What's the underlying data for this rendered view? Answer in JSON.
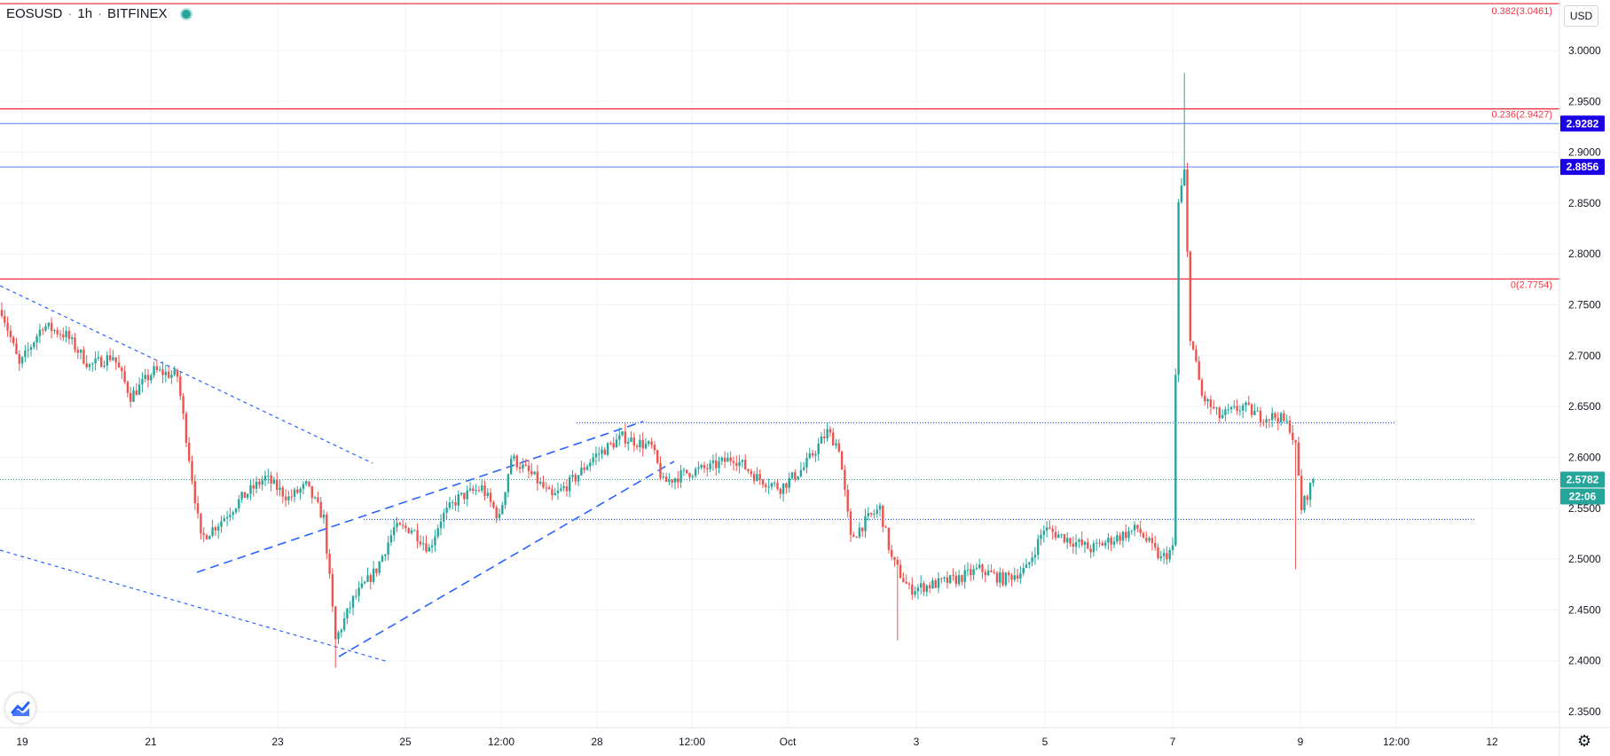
{
  "header": {
    "symbol": "EOSUSD",
    "interval": "1h",
    "exchange": "BITFINEX"
  },
  "currency_button": "USD",
  "icons": {
    "status": "live-dot-icon",
    "logo": "tradingview-logo-icon",
    "settings": "gear-icon"
  },
  "colors": {
    "up": "#26a69a",
    "down": "#ef5350",
    "fib_line": "#f23645",
    "horizontal_line": "#2962ff",
    "trend_line": "#2962ff",
    "price_badge_blue": "#1c00e6",
    "price_badge_green": "#26a69a"
  },
  "chart_data": {
    "type": "candlestick",
    "symbol": "EOSUSD",
    "interval": "1h",
    "exchange": "BITFINEX",
    "y_range": [
      2.33,
      3.06
    ],
    "x_ticks": [
      "19",
      "21",
      "23",
      "25",
      "12:00",
      "28",
      "12:00",
      "Oct",
      "3",
      "5",
      "7",
      "9",
      "12:00",
      "12"
    ],
    "y_ticks": [
      "3.0000",
      "2.9500",
      "2.9000",
      "2.8500",
      "2.8000",
      "2.7500",
      "2.7000",
      "2.6500",
      "2.6000",
      "2.5500",
      "2.5000",
      "2.4500",
      "2.4000",
      "2.3500"
    ],
    "fib_levels": [
      {
        "label": "0.382(3.0461)",
        "value": 3.0461
      },
      {
        "label": "0.236(2.9427)",
        "value": 2.9427
      },
      {
        "label": "0(2.7754)",
        "value": 2.7754
      }
    ],
    "horizontal_levels": [
      {
        "label": "2.9282",
        "value": 2.9282
      },
      {
        "label": "2.8856",
        "value": 2.8856
      }
    ],
    "last_price": {
      "label": "2.5782",
      "value": 2.5782,
      "countdown": "22:06"
    },
    "support_resistance_dotted": [
      2.634,
      2.539
    ],
    "price_path": [
      {
        "t": 0,
        "p": 2.745
      },
      {
        "t": 6,
        "p": 2.69
      },
      {
        "t": 14,
        "p": 2.73
      },
      {
        "t": 22,
        "p": 2.72
      },
      {
        "t": 30,
        "p": 2.69
      },
      {
        "t": 38,
        "p": 2.7
      },
      {
        "t": 44,
        "p": 2.66
      },
      {
        "t": 52,
        "p": 2.685
      },
      {
        "t": 60,
        "p": 2.68
      },
      {
        "t": 64,
        "p": 2.6
      },
      {
        "t": 68,
        "p": 2.52
      },
      {
        "t": 74,
        "p": 2.535
      },
      {
        "t": 82,
        "p": 2.56
      },
      {
        "t": 90,
        "p": 2.58
      },
      {
        "t": 98,
        "p": 2.56
      },
      {
        "t": 104,
        "p": 2.572
      },
      {
        "t": 110,
        "p": 2.54
      },
      {
        "t": 114,
        "p": 2.42
      },
      {
        "t": 120,
        "p": 2.46
      },
      {
        "t": 128,
        "p": 2.49
      },
      {
        "t": 134,
        "p": 2.53
      },
      {
        "t": 140,
        "p": 2.53
      },
      {
        "t": 146,
        "p": 2.51
      },
      {
        "t": 150,
        "p": 2.54
      },
      {
        "t": 156,
        "p": 2.56
      },
      {
        "t": 164,
        "p": 2.57
      },
      {
        "t": 170,
        "p": 2.54
      },
      {
        "t": 174,
        "p": 2.6
      },
      {
        "t": 182,
        "p": 2.58
      },
      {
        "t": 188,
        "p": 2.56
      },
      {
        "t": 196,
        "p": 2.58
      },
      {
        "t": 202,
        "p": 2.6
      },
      {
        "t": 212,
        "p": 2.62
      },
      {
        "t": 222,
        "p": 2.61
      },
      {
        "t": 226,
        "p": 2.575
      },
      {
        "t": 234,
        "p": 2.585
      },
      {
        "t": 242,
        "p": 2.59
      },
      {
        "t": 250,
        "p": 2.6
      },
      {
        "t": 258,
        "p": 2.58
      },
      {
        "t": 266,
        "p": 2.57
      },
      {
        "t": 274,
        "p": 2.59
      },
      {
        "t": 282,
        "p": 2.625
      },
      {
        "t": 286,
        "p": 2.61
      },
      {
        "t": 290,
        "p": 2.52
      },
      {
        "t": 296,
        "p": 2.54
      },
      {
        "t": 300,
        "p": 2.55
      },
      {
        "t": 304,
        "p": 2.5
      },
      {
        "t": 310,
        "p": 2.47
      },
      {
        "t": 318,
        "p": 2.475
      },
      {
        "t": 326,
        "p": 2.48
      },
      {
        "t": 334,
        "p": 2.49
      },
      {
        "t": 342,
        "p": 2.48
      },
      {
        "t": 350,
        "p": 2.49
      },
      {
        "t": 356,
        "p": 2.53
      },
      {
        "t": 364,
        "p": 2.52
      },
      {
        "t": 372,
        "p": 2.51
      },
      {
        "t": 380,
        "p": 2.52
      },
      {
        "t": 388,
        "p": 2.53
      },
      {
        "t": 396,
        "p": 2.5
      },
      {
        "t": 400,
        "p": 2.51
      },
      {
        "t": 402,
        "p": 2.85
      },
      {
        "t": 404,
        "p": 2.88
      },
      {
        "t": 406,
        "p": 2.72
      },
      {
        "t": 410,
        "p": 2.66
      },
      {
        "t": 416,
        "p": 2.64
      },
      {
        "t": 424,
        "p": 2.65
      },
      {
        "t": 430,
        "p": 2.64
      },
      {
        "t": 436,
        "p": 2.64
      },
      {
        "t": 440,
        "p": 2.63
      },
      {
        "t": 442,
        "p": 2.61
      },
      {
        "t": 444,
        "p": 2.55
      },
      {
        "t": 448,
        "p": 2.578
      }
    ],
    "extrema": [
      {
        "t": 404,
        "high": 2.978
      },
      {
        "t": 114,
        "low": 2.393
      },
      {
        "t": 306,
        "low": 2.42
      },
      {
        "t": 442,
        "low": 2.49
      }
    ]
  }
}
